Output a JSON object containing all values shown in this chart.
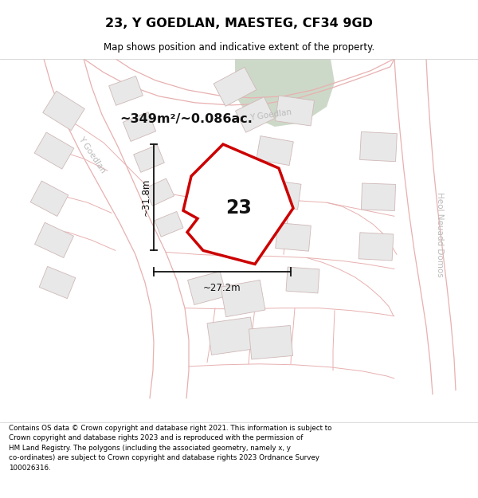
{
  "title": "23, Y GOEDLAN, MAESTEG, CF34 9GD",
  "subtitle": "Map shows position and indicative extent of the property.",
  "footer": "Contains OS data © Crown copyright and database right 2021. This information is subject to Crown copyright and database rights 2023 and is reproduced with the permission of HM Land Registry. The polygons (including the associated geometry, namely x, y co-ordinates) are subject to Crown copyright and database rights 2023 Ordnance Survey 100026316.",
  "area_label": "~349m²/~0.086ac.",
  "width_label": "~27.2m",
  "height_label": "~31.8m",
  "plot_number": "23",
  "map_bg": "#ffffff",
  "plot_fill": "#ffffff",
  "plot_outline": "#cc0000",
  "green_color": "#cdd9c8",
  "road_line_color": "#e8b0b0",
  "building_fill": "#e8e8e8",
  "building_edge": "#d0b8b8",
  "street_text_color": "#bbbbbb",
  "annotation_color": "#111111",
  "title_fontsize": 11.5,
  "subtitle_fontsize": 8.5,
  "footer_fontsize": 6.3
}
